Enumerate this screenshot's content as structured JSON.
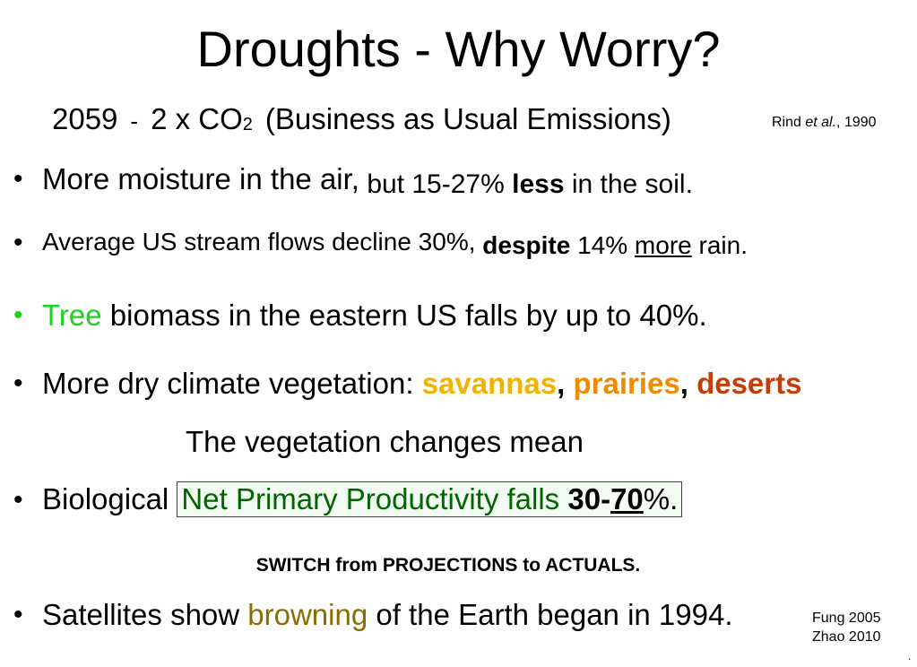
{
  "title": "Droughts - Why Worry?",
  "subtitle": {
    "year": "2059",
    "dash": "-",
    "co2_prefix": "2 x CO",
    "co2_sub": "2",
    "scenario": "(Business as Usual Emissions)"
  },
  "citation_rind": {
    "name": "Rind ",
    "etal": "et al.",
    "year": ", 1990"
  },
  "bullet_char": "•",
  "b1": {
    "a": "More moisture in the air,",
    "b": " but 15-27% ",
    "c": "less",
    "d": " in the soil."
  },
  "b2": {
    "a": "Average US stream flows decline 30%,",
    "b": " despite",
    "c": " 14% ",
    "d": "more",
    "e": " rain."
  },
  "b3": {
    "a": "Tree",
    "b": " biomass in the eastern US falls by up to 40%."
  },
  "b4": {
    "a": "More dry climate vegetation: ",
    "b": "savannas",
    "c": ", ",
    "d": "prairies",
    "e": ", ",
    "f": "deserts"
  },
  "vegetation_note": "The vegetation changes mean",
  "b5": {
    "a": "Biological ",
    "b": "Net Primary Productivity falls ",
    "c": "30-",
    "d": "70",
    "e": "%."
  },
  "switch_note": "SWITCH from PROJECTIONS to ACTUALS.",
  "b6": {
    "a": "Satellites show ",
    "b": "browning",
    "c": " of the Earth began in 1994."
  },
  "citation_fung": "Fung 2005",
  "citation_zhao": "Zhao 2010",
  "corner_mark": "."
}
